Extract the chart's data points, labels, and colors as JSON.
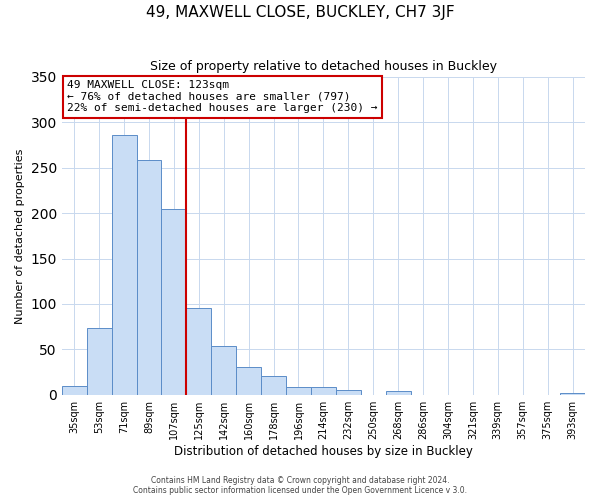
{
  "title": "49, MAXWELL CLOSE, BUCKLEY, CH7 3JF",
  "subtitle": "Size of property relative to detached houses in Buckley",
  "xlabel": "Distribution of detached houses by size in Buckley",
  "ylabel": "Number of detached properties",
  "bar_labels": [
    "35sqm",
    "53sqm",
    "71sqm",
    "89sqm",
    "107sqm",
    "125sqm",
    "142sqm",
    "160sqm",
    "178sqm",
    "196sqm",
    "214sqm",
    "232sqm",
    "250sqm",
    "268sqm",
    "286sqm",
    "304sqm",
    "321sqm",
    "339sqm",
    "357sqm",
    "375sqm",
    "393sqm"
  ],
  "bar_values": [
    10,
    74,
    286,
    259,
    204,
    96,
    54,
    31,
    21,
    8,
    9,
    5,
    0,
    4,
    0,
    0,
    0,
    0,
    0,
    0,
    2
  ],
  "bar_color": "#c9ddf5",
  "bar_edge_color": "#5b8cc8",
  "vline_index": 5,
  "property_line_label": "49 MAXWELL CLOSE: 123sqm",
  "annotation_line1": "← 76% of detached houses are smaller (797)",
  "annotation_line2": "22% of semi-detached houses are larger (230) →",
  "annotation_box_color": "#ffffff",
  "annotation_box_edge": "#cc0000",
  "vline_color": "#cc0000",
  "ylim": [
    0,
    350
  ],
  "yticks": [
    0,
    50,
    100,
    150,
    200,
    250,
    300,
    350
  ],
  "footer1": "Contains HM Land Registry data © Crown copyright and database right 2024.",
  "footer2": "Contains public sector information licensed under the Open Government Licence v 3.0.",
  "background_color": "#ffffff",
  "grid_color": "#c8d8ee"
}
